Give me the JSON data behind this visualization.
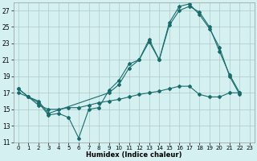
{
  "xlabel": "Humidex (Indice chaleur)",
  "bg_color": "#d4f0f0",
  "grid_color": "#b0c8c8",
  "line_color": "#1a6b6b",
  "xlim": [
    -0.5,
    23.5
  ],
  "ylim": [
    11,
    28
  ],
  "yticks": [
    11,
    13,
    15,
    17,
    19,
    21,
    23,
    25,
    27
  ],
  "xticks": [
    0,
    1,
    2,
    3,
    4,
    5,
    6,
    7,
    8,
    9,
    10,
    11,
    12,
    13,
    14,
    15,
    16,
    17,
    18,
    19,
    20,
    21,
    22,
    23
  ],
  "series1_x": [
    0,
    1,
    2,
    3,
    4,
    5,
    6,
    7,
    8,
    9,
    10,
    11,
    12,
    13,
    14,
    15,
    16,
    17,
    18,
    19,
    20,
    21,
    22
  ],
  "series1_y": [
    17.5,
    16.5,
    15.8,
    14.3,
    14.5,
    14.0,
    11.5,
    15.0,
    15.2,
    17.3,
    18.5,
    20.5,
    21.0,
    23.5,
    21.0,
    25.5,
    27.5,
    27.8,
    26.5,
    24.8,
    22.5,
    19.0,
    16.8
  ],
  "series2_x": [
    0,
    1,
    2,
    3,
    9,
    10,
    11,
    12,
    13,
    14,
    15,
    16,
    17,
    18,
    19,
    20,
    21,
    22
  ],
  "series2_y": [
    17.5,
    16.5,
    16.0,
    14.5,
    17.0,
    18.0,
    20.0,
    21.0,
    23.2,
    21.0,
    25.2,
    27.0,
    27.5,
    26.8,
    25.0,
    22.0,
    19.2,
    17.0
  ],
  "series3_x": [
    0,
    1,
    2,
    3,
    4,
    5,
    6,
    7,
    8,
    9,
    10,
    11,
    12,
    13,
    14,
    15,
    16,
    17,
    18,
    19,
    20,
    21,
    22
  ],
  "series3_y": [
    17.0,
    16.5,
    15.5,
    15.0,
    15.0,
    15.2,
    15.2,
    15.5,
    15.8,
    16.0,
    16.2,
    16.5,
    16.8,
    17.0,
    17.2,
    17.5,
    17.8,
    17.8,
    16.8,
    16.5,
    16.5,
    17.0,
    17.0
  ]
}
